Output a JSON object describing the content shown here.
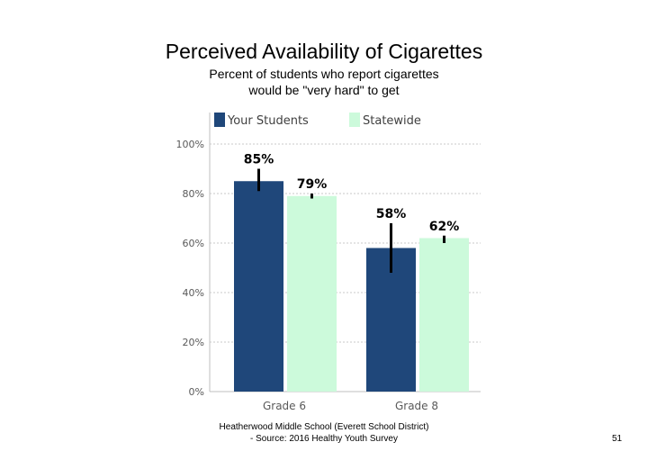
{
  "slide": {
    "title": "Perceived Availability of Cigarettes",
    "subtitle_lines": [
      "Percent of students who report cigarettes",
      "would be \"very hard\" to get"
    ],
    "footer_lines": [
      "Heatherwood Middle School (Everett School District)",
      "- Source: 2016 Healthy Youth Survey"
    ],
    "page_number": "51"
  },
  "chart_data": {
    "type": "bar",
    "categories": [
      "Grade 6",
      "Grade 8"
    ],
    "series": [
      {
        "name": "Your Students",
        "color": "#1f477a",
        "values": [
          85,
          58
        ],
        "labels": [
          "85%",
          "58%"
        ],
        "error_bars": [
          [
            81,
            90
          ],
          [
            48,
            68
          ]
        ]
      },
      {
        "name": "Statewide",
        "color": "#ccfadb",
        "values": [
          79,
          62
        ],
        "labels": [
          "79%",
          "62%"
        ],
        "error_bars": [
          [
            78,
            80
          ],
          [
            60,
            63
          ]
        ]
      }
    ],
    "y_ticks": [
      "0%",
      "20%",
      "40%",
      "60%",
      "80%",
      "100%"
    ],
    "ylim": [
      0,
      110
    ],
    "grid": true,
    "legend_position": "top"
  }
}
